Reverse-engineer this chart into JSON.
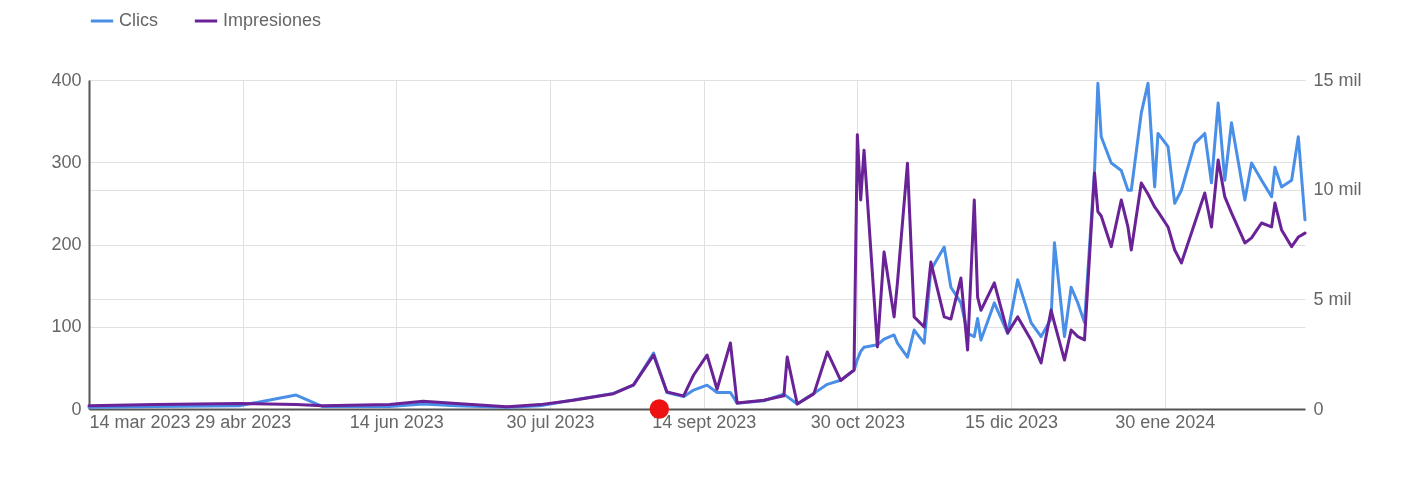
{
  "chart_data": {
    "type": "line",
    "x": [
      "2023-03-14",
      "2023-04-03",
      "2023-04-28",
      "2023-05-15",
      "2023-05-23",
      "2023-06-12",
      "2023-06-22",
      "2023-07-02",
      "2023-07-17",
      "2023-07-27",
      "2023-08-06",
      "2023-08-18",
      "2023-08-24",
      "2023-08-30",
      "2023-09-03",
      "2023-09-08",
      "2023-09-11",
      "2023-09-15",
      "2023-09-18",
      "2023-09-22",
      "2023-09-24",
      "2023-10-02",
      "2023-10-08",
      "2023-10-09",
      "2023-10-12",
      "2023-10-17",
      "2023-10-21",
      "2023-10-25",
      "2023-10-29",
      "2023-10-30",
      "2023-10-31",
      "2023-11-01",
      "2023-11-05",
      "2023-11-07",
      "2023-11-10",
      "2023-11-11",
      "2023-11-14",
      "2023-11-16",
      "2023-11-19",
      "2023-11-21",
      "2023-11-25",
      "2023-11-27",
      "2023-11-30",
      "2023-12-02",
      "2023-12-04",
      "2023-12-05",
      "2023-12-06",
      "2023-12-10",
      "2023-12-14",
      "2023-12-17",
      "2023-12-21",
      "2023-12-24",
      "2023-12-27",
      "2023-12-28",
      "2023-12-31",
      "2024-01-02",
      "2024-01-04",
      "2024-01-06",
      "2024-01-09",
      "2024-01-10",
      "2024-01-11",
      "2024-01-14",
      "2024-01-17",
      "2024-01-19",
      "2024-01-20",
      "2024-01-23",
      "2024-01-25",
      "2024-01-27",
      "2024-01-28",
      "2024-01-31",
      "2024-02-02",
      "2024-02-04",
      "2024-02-08",
      "2024-02-11",
      "2024-02-13",
      "2024-02-15",
      "2024-02-17",
      "2024-02-19",
      "2024-02-23",
      "2024-02-25",
      "2024-02-28",
      "2024-03-02",
      "2024-03-03",
      "2024-03-05",
      "2024-03-08",
      "2024-03-10",
      "2024-03-12"
    ],
    "series": [
      {
        "name": "Clics",
        "color": "#4a8fe7",
        "values": [
          2,
          3,
          4,
          17,
          3,
          3,
          6,
          4,
          2,
          4,
          11,
          19,
          29,
          68,
          20,
          15,
          23,
          29,
          20,
          20,
          7,
          10,
          18,
          15,
          6,
          19,
          30,
          35,
          47,
          60,
          70,
          75,
          78,
          85,
          90,
          80,
          63,
          96,
          80,
          169,
          197,
          148,
          129,
          92,
          88,
          110,
          84,
          129,
          92,
          157,
          105,
          88,
          110,
          202,
          88,
          148,
          129,
          105,
          290,
          396,
          331,
          299,
          290,
          266,
          266,
          360,
          396,
          270,
          335,
          319,
          250,
          266,
          323,
          335,
          275,
          372,
          278,
          348,
          254,
          299,
          278,
          258,
          294,
          270,
          278,
          331,
          230
        ]
      },
      {
        "name": "Impresiones",
        "color": "#6a2297",
        "axis": "y2",
        "values": [
          0.15,
          0.2,
          0.25,
          0.2,
          0.15,
          0.2,
          0.35,
          0.25,
          0.1,
          0.2,
          0.4,
          0.7,
          1.1,
          2.46,
          0.78,
          0.6,
          1.55,
          2.46,
          0.9,
          3.01,
          0.27,
          0.4,
          0.6,
          2.37,
          0.23,
          0.7,
          2.6,
          1.3,
          1.78,
          12.5,
          9.53,
          11.8,
          2.83,
          7.16,
          4.2,
          5.75,
          11.2,
          4.2,
          3.74,
          6.7,
          4.2,
          4.1,
          5.97,
          2.69,
          9.53,
          5.1,
          4.5,
          5.75,
          3.47,
          4.2,
          3.15,
          2.1,
          4.51,
          3.92,
          2.23,
          3.6,
          3.3,
          3.15,
          10.76,
          9.0,
          8.8,
          7.4,
          9.53,
          8.3,
          7.25,
          10.3,
          9.8,
          9.21,
          9.0,
          8.3,
          7.25,
          6.66,
          8.48,
          9.85,
          8.3,
          11.35,
          9.67,
          8.94,
          7.57,
          7.8,
          8.48,
          8.3,
          9.39,
          8.16,
          7.4,
          7.84,
          8.02
        ]
      }
    ],
    "xlim": [
      "2023-03-14",
      "2024-03-12"
    ],
    "xticks": [
      {
        "value": "2023-03-14",
        "label": "14 mar 2023"
      },
      {
        "value": "2023-04-29",
        "label": "29 abr 2023"
      },
      {
        "value": "2023-06-14",
        "label": "14 jun 2023"
      },
      {
        "value": "2023-07-30",
        "label": "30 jul 2023"
      },
      {
        "value": "2023-09-14",
        "label": "14 sept 2023"
      },
      {
        "value": "2023-10-30",
        "label": "30 oct 2023"
      },
      {
        "value": "2023-12-15",
        "label": "15 dic 2023"
      },
      {
        "value": "2024-01-30",
        "label": "30 ene 2024"
      }
    ],
    "ylim": [
      0,
      400
    ],
    "yticks": [
      0,
      100,
      200,
      300,
      400
    ],
    "y2lim": [
      0,
      15
    ],
    "y2ticks": [
      0,
      {
        "value": 5,
        "label": "5 mil"
      },
      {
        "value": 10,
        "label": "10 mil"
      },
      {
        "value": 15,
        "label": "15 mil"
      }
    ],
    "grid": true,
    "legend": "top left"
  }
}
